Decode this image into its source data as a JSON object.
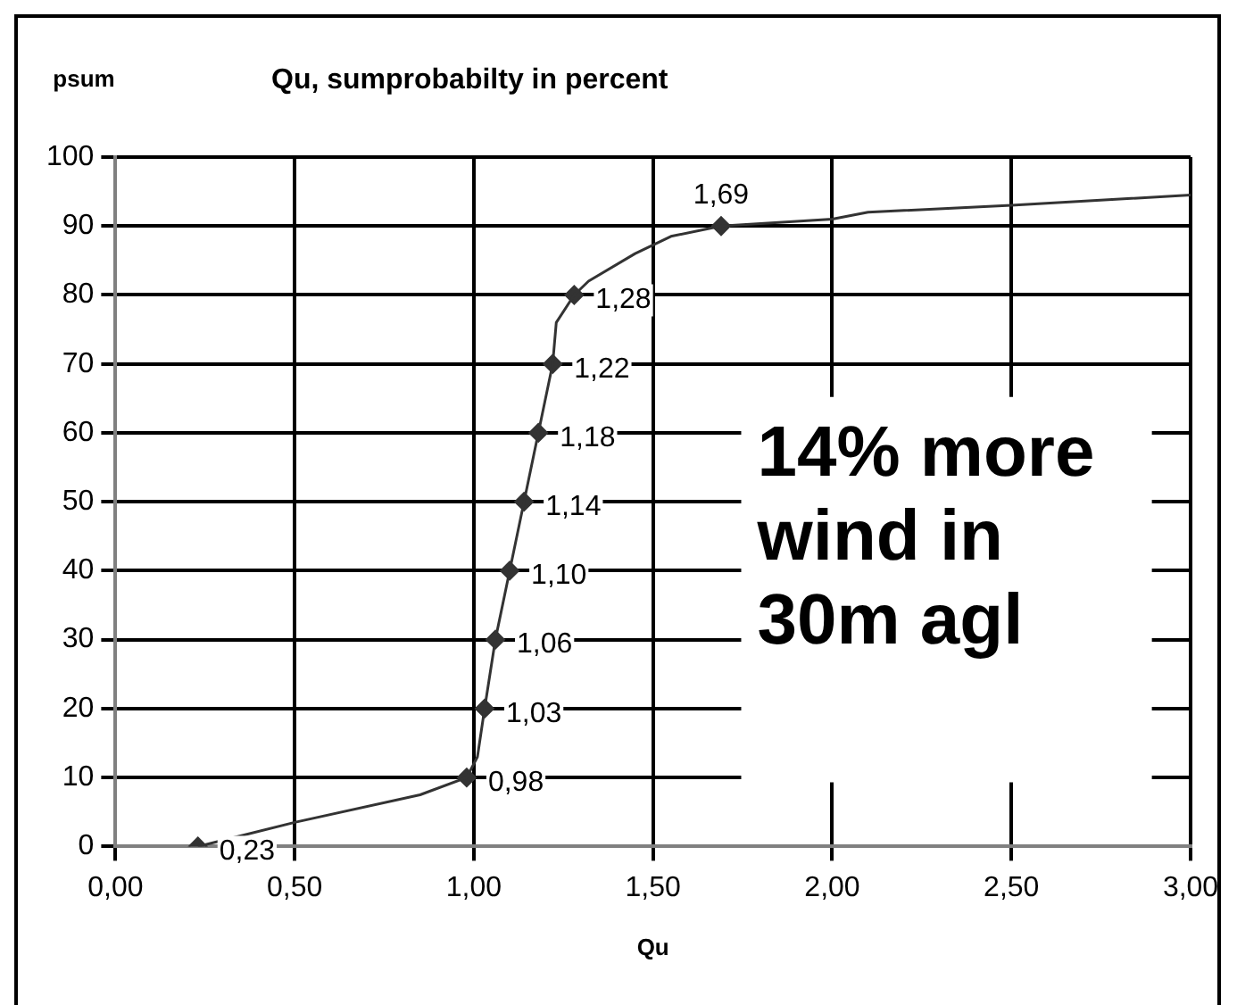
{
  "chart_data": {
    "type": "line",
    "title": "Qu, sumprobabilty in percent",
    "xlabel": "Qu",
    "ylabel": "psum",
    "annotations": [
      "14% more wind in 30m agl",
      {
        "text": "0,23",
        "x": 0.23,
        "y": 0
      },
      {
        "text": "0,98",
        "x": 0.98,
        "y": 10
      },
      {
        "text": "1,03",
        "x": 1.03,
        "y": 20
      },
      {
        "text": "1,06",
        "x": 1.06,
        "y": 30
      },
      {
        "text": "1,10",
        "x": 1.1,
        "y": 40
      },
      {
        "text": "1,14",
        "x": 1.14,
        "y": 50
      },
      {
        "text": "1,18",
        "x": 1.18,
        "y": 60
      },
      {
        "text": "1,22",
        "x": 1.22,
        "y": 70
      },
      {
        "text": "1,28",
        "x": 1.28,
        "y": 80
      },
      {
        "text": "1,69",
        "x": 1.69,
        "y": 90
      }
    ],
    "xlim": [
      0,
      3
    ],
    "xticks": [
      {
        "value": 0,
        "label": "0,00"
      },
      {
        "value": 0.5,
        "label": "0,50"
      },
      {
        "value": 1,
        "label": "1,00"
      },
      {
        "value": 1.5,
        "label": "1,50"
      },
      {
        "value": 2,
        "label": "2,00"
      },
      {
        "value": 2.5,
        "label": "2,50"
      },
      {
        "value": 3,
        "label": "3,00"
      }
    ],
    "ylim": [
      0,
      100
    ],
    "yticks": [
      0,
      10,
      20,
      30,
      40,
      50,
      60,
      70,
      80,
      90,
      100
    ],
    "grid": true,
    "legend": false,
    "series": [
      {
        "color": "#333333",
        "marker": "none",
        "x": [
          0.23,
          0.5,
          0.85,
          0.98,
          1.01,
          1.03,
          1.06,
          1.1,
          1.14,
          1.18,
          1.22,
          1.23,
          1.28,
          1.32,
          1.45,
          1.55,
          1.69,
          2.0,
          2.1,
          2.5,
          3.0
        ],
        "values": [
          0,
          3.5,
          7.5,
          10,
          13,
          20,
          30,
          40,
          50,
          60,
          70,
          76,
          80,
          82,
          86,
          88.5,
          90,
          91,
          92,
          93,
          94.5
        ]
      },
      {
        "type": "scatter",
        "color": "#333333",
        "marker": "diamond",
        "x": [
          0.23,
          0.98,
          1.03,
          1.06,
          1.1,
          1.14,
          1.18,
          1.22,
          1.28,
          1.69
        ],
        "values": [
          0,
          10,
          20,
          30,
          40,
          50,
          60,
          70,
          80,
          90
        ]
      }
    ]
  }
}
